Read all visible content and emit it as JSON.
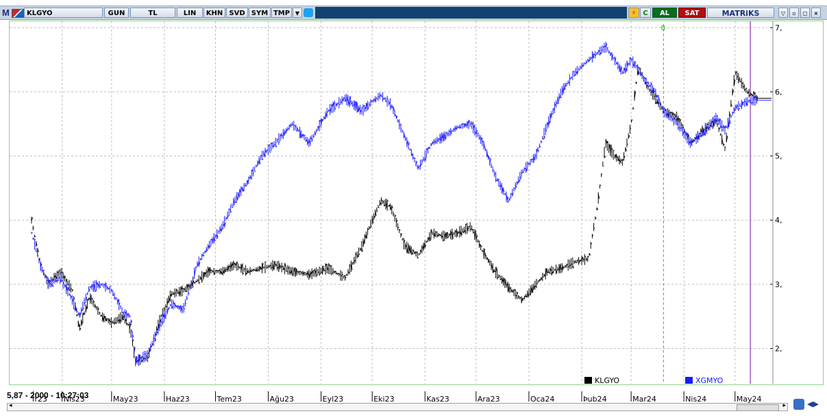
{
  "toolbar": {
    "logo": "M",
    "symbol": "KLGYO",
    "buttons": [
      "GUN",
      "TL",
      "LIN",
      "KHN",
      "SVD",
      "SYM",
      "TMP"
    ],
    "al_label": "AL",
    "sat_label": "SAT",
    "brand": "MATRiKS",
    "colors": {
      "al": "#0b6b1c",
      "sat": "#b10f12",
      "bar": "#12426f"
    }
  },
  "status": {
    "readout": "5,87 - 2000 - 10:27:03"
  },
  "chart_data": {
    "type": "line",
    "y_axis": {
      "ticks": [
        "2,",
        "3,",
        "4,",
        "5,",
        "6,",
        "7,"
      ],
      "ylim": [
        1.45,
        7.1
      ],
      "position": "right"
    },
    "x_axis": {
      "ticks": [
        "r23",
        "Nis23",
        "May23",
        "Haz23",
        "Tem23",
        "Ağu23",
        "Eyl23",
        "Eki23",
        "Kas23",
        "Ara23",
        "Oca24",
        "Þub24",
        "Mar24",
        "Nis24",
        "May24"
      ],
      "range": [
        "2023-03-15",
        "2024-05-20"
      ]
    },
    "grid": true,
    "marker": {
      "label": "B",
      "date": "2024-03-20",
      "color": "#22c422"
    },
    "cursor_line": {
      "date": "2024-05-10",
      "color": "#a05cc4"
    },
    "legend": {
      "position": "bottom-right"
    },
    "series": [
      {
        "name": "KLGYO",
        "color": "#000000",
        "dates": [
          "2023-03-15",
          "2023-03-20",
          "2023-03-25",
          "2023-04-01",
          "2023-04-08",
          "2023-04-12",
          "2023-04-18",
          "2023-04-25",
          "2023-05-01",
          "2023-05-08",
          "2023-05-12",
          "2023-05-15",
          "2023-05-22",
          "2023-05-30",
          "2023-06-05",
          "2023-06-12",
          "2023-06-20",
          "2023-06-27",
          "2023-07-05",
          "2023-07-12",
          "2023-07-20",
          "2023-07-28",
          "2023-08-05",
          "2023-08-15",
          "2023-08-25",
          "2023-09-05",
          "2023-09-15",
          "2023-09-25",
          "2023-10-01",
          "2023-10-06",
          "2023-10-12",
          "2023-10-20",
          "2023-10-28",
          "2023-11-05",
          "2023-11-12",
          "2023-11-20",
          "2023-11-28",
          "2023-12-05",
          "2023-12-12",
          "2023-12-20",
          "2023-12-28",
          "2024-01-05",
          "2024-01-12",
          "2024-01-20",
          "2024-01-28",
          "2024-02-05",
          "2024-02-10",
          "2024-02-15",
          "2024-02-20",
          "2024-02-25",
          "2024-03-01",
          "2024-03-05",
          "2024-03-10",
          "2024-03-15",
          "2024-03-20",
          "2024-03-28",
          "2024-04-05",
          "2024-04-12",
          "2024-04-20",
          "2024-04-25",
          "2024-05-01",
          "2024-05-08",
          "2024-05-14"
        ],
        "values": [
          4.0,
          3.3,
          3.0,
          3.2,
          2.9,
          2.3,
          2.8,
          2.5,
          2.4,
          2.5,
          2.3,
          1.8,
          1.85,
          2.5,
          2.85,
          2.9,
          3.05,
          3.2,
          3.2,
          3.3,
          3.2,
          3.25,
          3.3,
          3.2,
          3.15,
          3.25,
          3.1,
          3.6,
          4.0,
          4.3,
          4.2,
          3.6,
          3.45,
          3.8,
          3.75,
          3.8,
          3.9,
          3.5,
          3.2,
          2.95,
          2.75,
          3.0,
          3.2,
          3.25,
          3.35,
          3.4,
          4.2,
          5.2,
          5.0,
          4.9,
          5.5,
          6.4,
          6.1,
          5.9,
          5.7,
          5.6,
          5.2,
          5.4,
          5.55,
          5.1,
          6.3,
          6.0,
          5.9
        ]
      },
      {
        "name": "XGMYO",
        "color": "#1a1aff",
        "dates": [
          "2023-03-15",
          "2023-03-20",
          "2023-03-25",
          "2023-04-01",
          "2023-04-08",
          "2023-04-12",
          "2023-04-18",
          "2023-04-25",
          "2023-05-01",
          "2023-05-08",
          "2023-05-12",
          "2023-05-15",
          "2023-05-22",
          "2023-05-30",
          "2023-06-05",
          "2023-06-12",
          "2023-06-20",
          "2023-06-27",
          "2023-07-05",
          "2023-07-12",
          "2023-07-20",
          "2023-07-28",
          "2023-08-05",
          "2023-08-15",
          "2023-08-25",
          "2023-09-05",
          "2023-09-15",
          "2023-09-25",
          "2023-10-01",
          "2023-10-06",
          "2023-10-12",
          "2023-10-20",
          "2023-10-28",
          "2023-11-05",
          "2023-11-12",
          "2023-11-20",
          "2023-11-28",
          "2023-12-05",
          "2023-12-12",
          "2023-12-20",
          "2023-12-28",
          "2024-01-05",
          "2024-01-12",
          "2024-01-20",
          "2024-01-28",
          "2024-02-05",
          "2024-02-10",
          "2024-02-15",
          "2024-02-20",
          "2024-02-25",
          "2024-03-01",
          "2024-03-05",
          "2024-03-10",
          "2024-03-15",
          "2024-03-20",
          "2024-03-28",
          "2024-04-05",
          "2024-04-12",
          "2024-04-20",
          "2024-04-25",
          "2024-05-01",
          "2024-05-08",
          "2024-05-14"
        ],
        "values": [
          3.8,
          3.3,
          3.0,
          3.1,
          2.75,
          2.5,
          2.95,
          3.0,
          2.9,
          2.55,
          2.5,
          1.8,
          1.9,
          2.4,
          2.7,
          2.6,
          3.3,
          3.6,
          3.9,
          4.3,
          4.6,
          5.0,
          5.2,
          5.5,
          5.2,
          5.7,
          5.9,
          5.7,
          5.85,
          5.95,
          5.8,
          5.3,
          4.8,
          5.2,
          5.3,
          5.45,
          5.5,
          5.2,
          4.7,
          4.3,
          4.75,
          5.0,
          5.5,
          6.0,
          6.3,
          6.5,
          6.6,
          6.7,
          6.5,
          6.3,
          6.5,
          6.35,
          6.15,
          6.0,
          5.7,
          5.5,
          5.2,
          5.35,
          5.6,
          5.4,
          5.75,
          5.85,
          5.87
        ]
      }
    ]
  },
  "legend_colors": {
    "KLGYO": "#000000",
    "XGMYO": "#1a1aff"
  }
}
